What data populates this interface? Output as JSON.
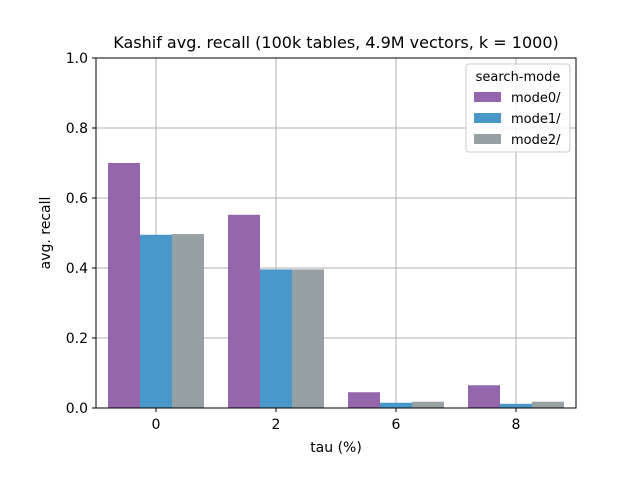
{
  "chart_data": {
    "type": "bar",
    "title": "Kashif avg. recall (100k tables, 4.9M vectors, k = 1000)",
    "xlabel": "tau (%)",
    "ylabel": "avg. recall",
    "categories": [
      "0",
      "2",
      "6",
      "8"
    ],
    "ylim": [
      0,
      1.0
    ],
    "yticks": [
      "0.0",
      "0.2",
      "0.4",
      "0.6",
      "0.8",
      "1.0"
    ],
    "grid": true,
    "legend": {
      "title": "search-mode",
      "placement": "top-right"
    },
    "series": [
      {
        "name": "mode0/",
        "color": "#9467ad",
        "values": [
          0.7,
          0.552,
          0.045,
          0.065
        ]
      },
      {
        "name": "mode1/",
        "color": "#4a97c9",
        "values": [
          0.495,
          0.396,
          0.015,
          0.012
        ]
      },
      {
        "name": "mode2/",
        "color": "#97a1a3",
        "values": [
          0.497,
          0.396,
          0.018,
          0.018
        ]
      }
    ]
  }
}
